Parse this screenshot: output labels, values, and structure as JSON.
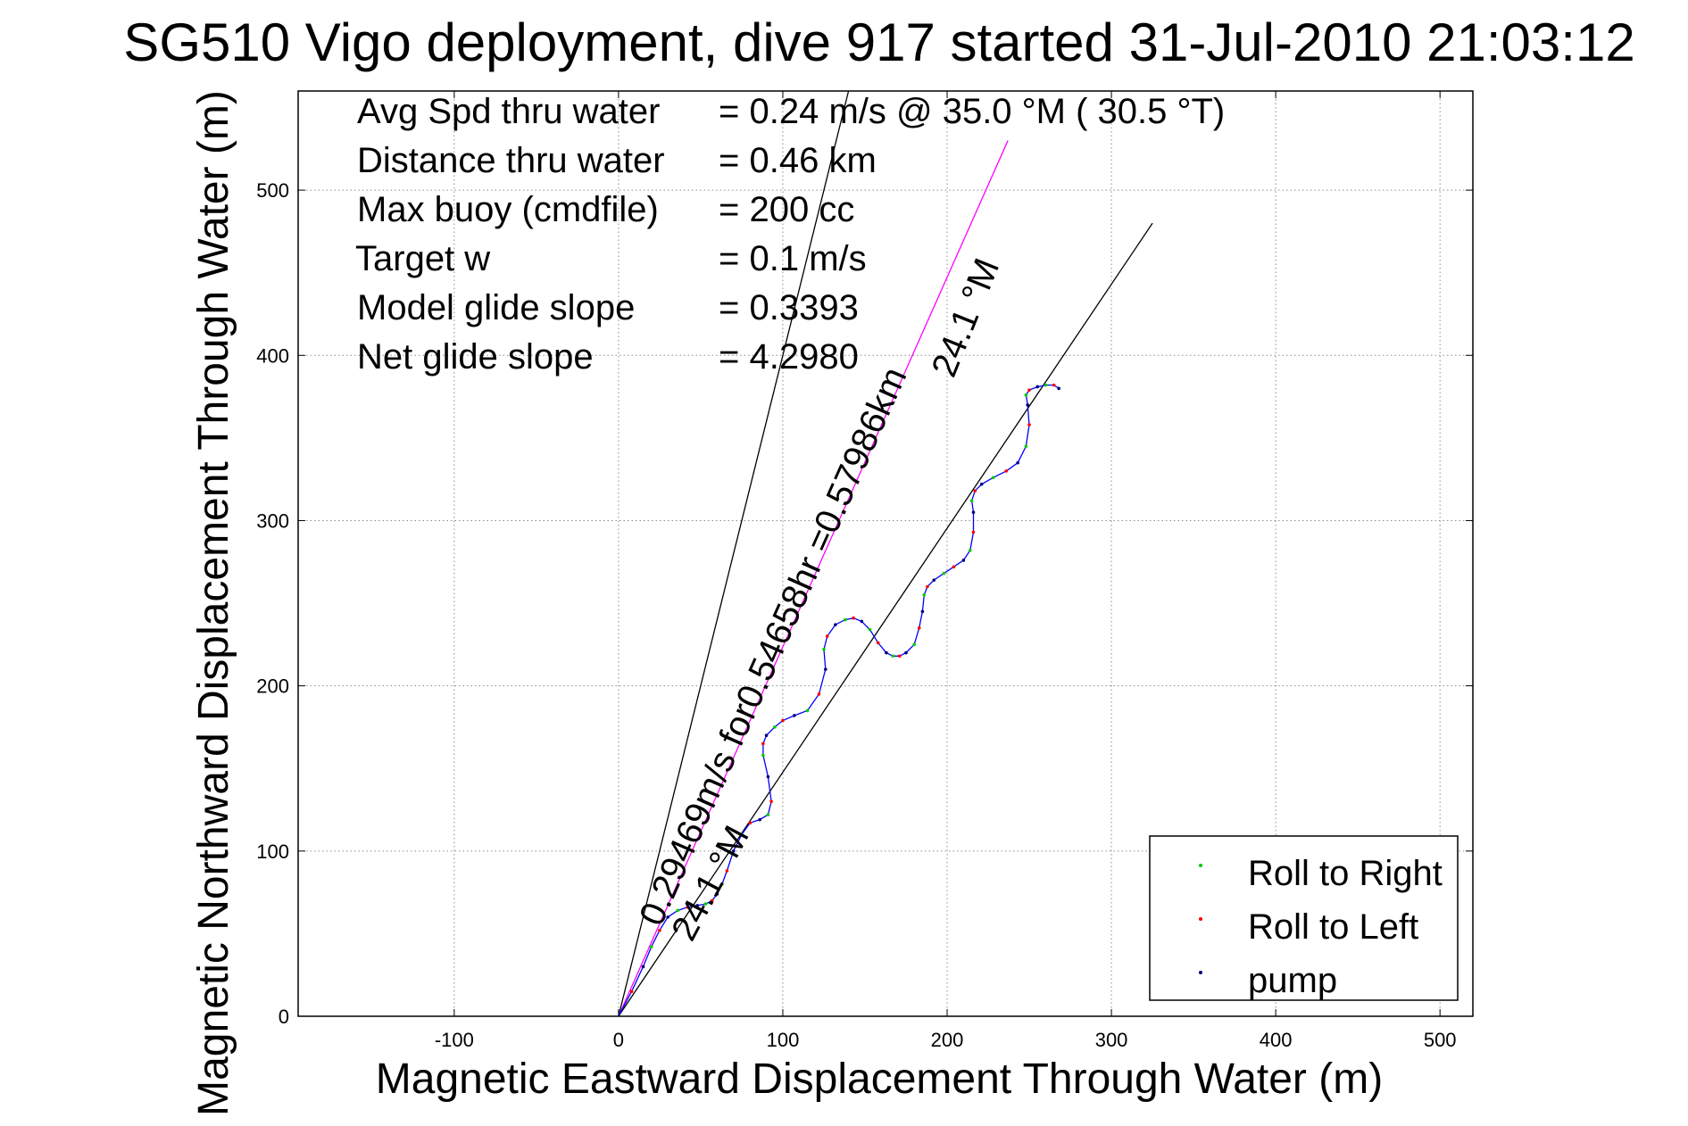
{
  "chart_data": {
    "type": "line",
    "title": "SG510 Vigo deployment, dive 917 started 31-Jul-2010 21:03:12",
    "xlabel": "Magnetic Eastward Displacement Through Water (m)",
    "ylabel": "Magnetic Northward Displacement Through Water (m)",
    "xlim": [
      -195,
      520
    ],
    "ylim": [
      0,
      560
    ],
    "xticks": [
      -100,
      0,
      100,
      200,
      300,
      400,
      500
    ],
    "yticks": [
      0,
      100,
      200,
      300,
      400,
      500
    ],
    "grid": true,
    "legend_position": "bottom-right",
    "info_lines": [
      {
        "label": "Avg Spd thru water",
        "value": "=  0.24 m/s @   35.0 °M ( 30.5 °T)"
      },
      {
        "label": "Distance thru water",
        "value": "=  0.46 km"
      },
      {
        "label": "Max buoy (cmdfile)",
        "value": "= 200 cc"
      },
      {
        "label": "Target w",
        "value": "= 0.1 m/s"
      },
      {
        "label": "Model glide slope",
        "value": "= 0.3393"
      },
      {
        "label": "Net glide slope",
        "value": "= 4.2980"
      }
    ],
    "annotations": {
      "heading_label_far": "24.1 °M",
      "heading_label_near": "24.1 °M",
      "current_label": "0.29469m/s for0.54658hr =0.57986km"
    },
    "reference_lines": [
      {
        "name": "heading 24.1 °M (far)",
        "x": [
          0,
          325
        ],
        "y": [
          0,
          480
        ],
        "color": "#000000"
      },
      {
        "name": "steep line",
        "x": [
          0,
          140
        ],
        "y": [
          0,
          560
        ],
        "color": "#000000"
      },
      {
        "name": "current vector",
        "x": [
          0,
          237
        ],
        "y": [
          0,
          530
        ],
        "color": "#ff00ff"
      }
    ],
    "series": [
      {
        "color": "#0000ff",
        "x": [
          0,
          8,
          15,
          20,
          25,
          30,
          36,
          42,
          48,
          53,
          57,
          60,
          63,
          66,
          70,
          75,
          80,
          86,
          91,
          93,
          91,
          88,
          88,
          90,
          95,
          100,
          107,
          115,
          122,
          126,
          125,
          127,
          132,
          138,
          143,
          148,
          153,
          158,
          163,
          167,
          171,
          175,
          180,
          183,
          185,
          186,
          188,
          192,
          198,
          204,
          210,
          214,
          216,
          216,
          215,
          217,
          221,
          228,
          236,
          243,
          248,
          250,
          249,
          248,
          250,
          255,
          260,
          265,
          268
        ],
        "y": [
          0,
          15,
          30,
          42,
          52,
          60,
          64,
          66,
          67,
          68,
          70,
          74,
          80,
          88,
          100,
          110,
          117,
          119,
          122,
          130,
          145,
          158,
          165,
          170,
          175,
          179,
          182,
          185,
          195,
          210,
          222,
          230,
          237,
          240,
          241,
          239,
          234,
          226,
          220,
          218,
          218,
          220,
          225,
          235,
          245,
          255,
          260,
          264,
          268,
          272,
          276,
          282,
          293,
          305,
          312,
          318,
          322,
          326,
          330,
          335,
          345,
          358,
          370,
          376,
          379,
          381,
          382,
          382,
          380
        ]
      }
    ],
    "legend": [
      {
        "label": "Roll to Right",
        "color": "#00cc00"
      },
      {
        "label": "Roll to Left",
        "color": "#ff0000"
      },
      {
        "label": "pump",
        "color": "#000080"
      }
    ]
  }
}
